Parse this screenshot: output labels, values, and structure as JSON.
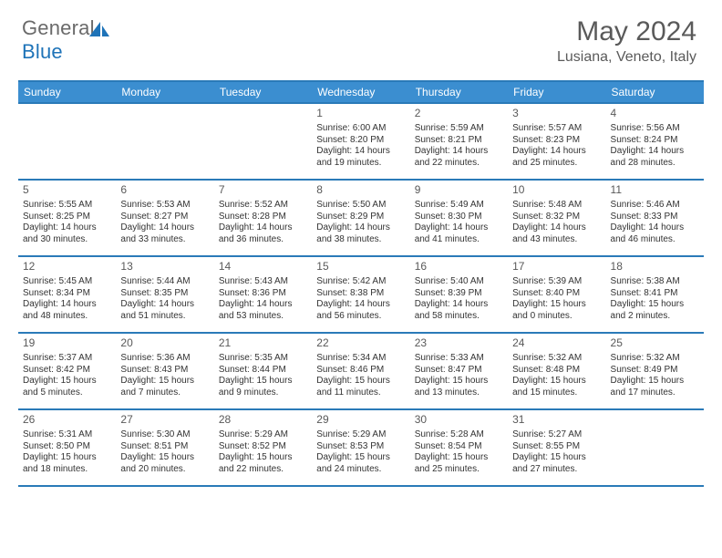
{
  "logo": {
    "part1": "General",
    "part2": "Blue"
  },
  "title": {
    "month": "May 2024",
    "location": "Lusiana, Veneto, Italy"
  },
  "colors": {
    "header_bg": "#3b8ed0",
    "border": "#2a7ab8",
    "text": "#333333",
    "muted": "#5a5a5a",
    "logo_blue": "#1e73b8",
    "logo_gray": "#6a6a6a"
  },
  "day_headers": [
    "Sunday",
    "Monday",
    "Tuesday",
    "Wednesday",
    "Thursday",
    "Friday",
    "Saturday"
  ],
  "weeks": [
    [
      null,
      null,
      null,
      {
        "num": "1",
        "sunrise": "Sunrise: 6:00 AM",
        "sunset": "Sunset: 8:20 PM",
        "day1": "Daylight: 14 hours",
        "day2": "and 19 minutes."
      },
      {
        "num": "2",
        "sunrise": "Sunrise: 5:59 AM",
        "sunset": "Sunset: 8:21 PM",
        "day1": "Daylight: 14 hours",
        "day2": "and 22 minutes."
      },
      {
        "num": "3",
        "sunrise": "Sunrise: 5:57 AM",
        "sunset": "Sunset: 8:23 PM",
        "day1": "Daylight: 14 hours",
        "day2": "and 25 minutes."
      },
      {
        "num": "4",
        "sunrise": "Sunrise: 5:56 AM",
        "sunset": "Sunset: 8:24 PM",
        "day1": "Daylight: 14 hours",
        "day2": "and 28 minutes."
      }
    ],
    [
      {
        "num": "5",
        "sunrise": "Sunrise: 5:55 AM",
        "sunset": "Sunset: 8:25 PM",
        "day1": "Daylight: 14 hours",
        "day2": "and 30 minutes."
      },
      {
        "num": "6",
        "sunrise": "Sunrise: 5:53 AM",
        "sunset": "Sunset: 8:27 PM",
        "day1": "Daylight: 14 hours",
        "day2": "and 33 minutes."
      },
      {
        "num": "7",
        "sunrise": "Sunrise: 5:52 AM",
        "sunset": "Sunset: 8:28 PM",
        "day1": "Daylight: 14 hours",
        "day2": "and 36 minutes."
      },
      {
        "num": "8",
        "sunrise": "Sunrise: 5:50 AM",
        "sunset": "Sunset: 8:29 PM",
        "day1": "Daylight: 14 hours",
        "day2": "and 38 minutes."
      },
      {
        "num": "9",
        "sunrise": "Sunrise: 5:49 AM",
        "sunset": "Sunset: 8:30 PM",
        "day1": "Daylight: 14 hours",
        "day2": "and 41 minutes."
      },
      {
        "num": "10",
        "sunrise": "Sunrise: 5:48 AM",
        "sunset": "Sunset: 8:32 PM",
        "day1": "Daylight: 14 hours",
        "day2": "and 43 minutes."
      },
      {
        "num": "11",
        "sunrise": "Sunrise: 5:46 AM",
        "sunset": "Sunset: 8:33 PM",
        "day1": "Daylight: 14 hours",
        "day2": "and 46 minutes."
      }
    ],
    [
      {
        "num": "12",
        "sunrise": "Sunrise: 5:45 AM",
        "sunset": "Sunset: 8:34 PM",
        "day1": "Daylight: 14 hours",
        "day2": "and 48 minutes."
      },
      {
        "num": "13",
        "sunrise": "Sunrise: 5:44 AM",
        "sunset": "Sunset: 8:35 PM",
        "day1": "Daylight: 14 hours",
        "day2": "and 51 minutes."
      },
      {
        "num": "14",
        "sunrise": "Sunrise: 5:43 AM",
        "sunset": "Sunset: 8:36 PM",
        "day1": "Daylight: 14 hours",
        "day2": "and 53 minutes."
      },
      {
        "num": "15",
        "sunrise": "Sunrise: 5:42 AM",
        "sunset": "Sunset: 8:38 PM",
        "day1": "Daylight: 14 hours",
        "day2": "and 56 minutes."
      },
      {
        "num": "16",
        "sunrise": "Sunrise: 5:40 AM",
        "sunset": "Sunset: 8:39 PM",
        "day1": "Daylight: 14 hours",
        "day2": "and 58 minutes."
      },
      {
        "num": "17",
        "sunrise": "Sunrise: 5:39 AM",
        "sunset": "Sunset: 8:40 PM",
        "day1": "Daylight: 15 hours",
        "day2": "and 0 minutes."
      },
      {
        "num": "18",
        "sunrise": "Sunrise: 5:38 AM",
        "sunset": "Sunset: 8:41 PM",
        "day1": "Daylight: 15 hours",
        "day2": "and 2 minutes."
      }
    ],
    [
      {
        "num": "19",
        "sunrise": "Sunrise: 5:37 AM",
        "sunset": "Sunset: 8:42 PM",
        "day1": "Daylight: 15 hours",
        "day2": "and 5 minutes."
      },
      {
        "num": "20",
        "sunrise": "Sunrise: 5:36 AM",
        "sunset": "Sunset: 8:43 PM",
        "day1": "Daylight: 15 hours",
        "day2": "and 7 minutes."
      },
      {
        "num": "21",
        "sunrise": "Sunrise: 5:35 AM",
        "sunset": "Sunset: 8:44 PM",
        "day1": "Daylight: 15 hours",
        "day2": "and 9 minutes."
      },
      {
        "num": "22",
        "sunrise": "Sunrise: 5:34 AM",
        "sunset": "Sunset: 8:46 PM",
        "day1": "Daylight: 15 hours",
        "day2": "and 11 minutes."
      },
      {
        "num": "23",
        "sunrise": "Sunrise: 5:33 AM",
        "sunset": "Sunset: 8:47 PM",
        "day1": "Daylight: 15 hours",
        "day2": "and 13 minutes."
      },
      {
        "num": "24",
        "sunrise": "Sunrise: 5:32 AM",
        "sunset": "Sunset: 8:48 PM",
        "day1": "Daylight: 15 hours",
        "day2": "and 15 minutes."
      },
      {
        "num": "25",
        "sunrise": "Sunrise: 5:32 AM",
        "sunset": "Sunset: 8:49 PM",
        "day1": "Daylight: 15 hours",
        "day2": "and 17 minutes."
      }
    ],
    [
      {
        "num": "26",
        "sunrise": "Sunrise: 5:31 AM",
        "sunset": "Sunset: 8:50 PM",
        "day1": "Daylight: 15 hours",
        "day2": "and 18 minutes."
      },
      {
        "num": "27",
        "sunrise": "Sunrise: 5:30 AM",
        "sunset": "Sunset: 8:51 PM",
        "day1": "Daylight: 15 hours",
        "day2": "and 20 minutes."
      },
      {
        "num": "28",
        "sunrise": "Sunrise: 5:29 AM",
        "sunset": "Sunset: 8:52 PM",
        "day1": "Daylight: 15 hours",
        "day2": "and 22 minutes."
      },
      {
        "num": "29",
        "sunrise": "Sunrise: 5:29 AM",
        "sunset": "Sunset: 8:53 PM",
        "day1": "Daylight: 15 hours",
        "day2": "and 24 minutes."
      },
      {
        "num": "30",
        "sunrise": "Sunrise: 5:28 AM",
        "sunset": "Sunset: 8:54 PM",
        "day1": "Daylight: 15 hours",
        "day2": "and 25 minutes."
      },
      {
        "num": "31",
        "sunrise": "Sunrise: 5:27 AM",
        "sunset": "Sunset: 8:55 PM",
        "day1": "Daylight: 15 hours",
        "day2": "and 27 minutes."
      },
      null
    ]
  ]
}
